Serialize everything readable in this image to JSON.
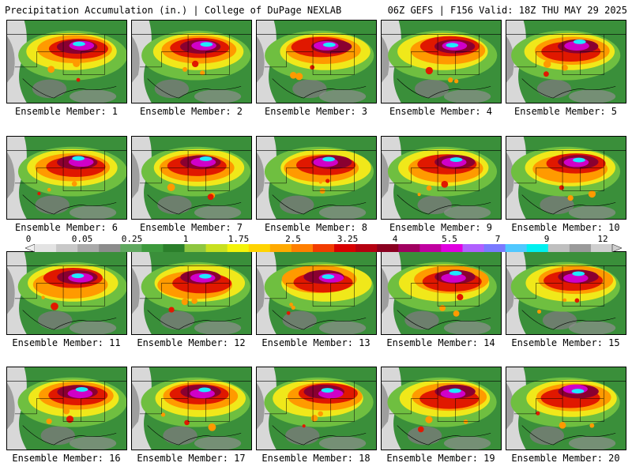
{
  "header": {
    "title": "Precipitation Accumulation (in.) | College of DuPage NEXLAB",
    "run_info": "06Z GEFS | F156 Valid: 18Z THU MAY 29 2025"
  },
  "legend": {
    "labels": [
      "0",
      "0.05",
      "0.25",
      "1",
      "1.75",
      "2.5",
      "3.25",
      "4",
      "5.5",
      "7",
      "9",
      "12"
    ],
    "colors": [
      "#e3e3e3",
      "#c8c8c8",
      "#a9a9a9",
      "#8c8c8c",
      "#5fa85f",
      "#3d9a3d",
      "#2b7f2b",
      "#8ec640",
      "#c8e020",
      "#f4f40a",
      "#ffd400",
      "#ffaa00",
      "#ff7f00",
      "#f23c00",
      "#d80000",
      "#b50010",
      "#8a0020",
      "#a00060",
      "#c000a0",
      "#e000e0",
      "#b060ff",
      "#7a7aff",
      "#50c8ff",
      "#00f0f0",
      "#bfbfbf",
      "#9a9a9a",
      "#cfcfcf"
    ]
  },
  "panels": [
    {
      "label": "Ensemble Member: 1"
    },
    {
      "label": "Ensemble Member: 2"
    },
    {
      "label": "Ensemble Member: 3"
    },
    {
      "label": "Ensemble Member: 4"
    },
    {
      "label": "Ensemble Member: 5"
    },
    {
      "label": "Ensemble Member: 6"
    },
    {
      "label": "Ensemble Member: 7"
    },
    {
      "label": "Ensemble Member: 8"
    },
    {
      "label": "Ensemble Member: 9"
    },
    {
      "label": "Ensemble Member: 10"
    },
    {
      "label": "Ensemble Member: 11"
    },
    {
      "label": "Ensemble Member: 12"
    },
    {
      "label": "Ensemble Member: 13"
    },
    {
      "label": "Ensemble Member: 14"
    },
    {
      "label": "Ensemble Member: 15"
    },
    {
      "label": "Ensemble Member: 16"
    },
    {
      "label": "Ensemble Member: 17"
    },
    {
      "label": "Ensemble Member: 18"
    },
    {
      "label": "Ensemble Member: 19"
    },
    {
      "label": "Ensemble Member: 20"
    }
  ]
}
